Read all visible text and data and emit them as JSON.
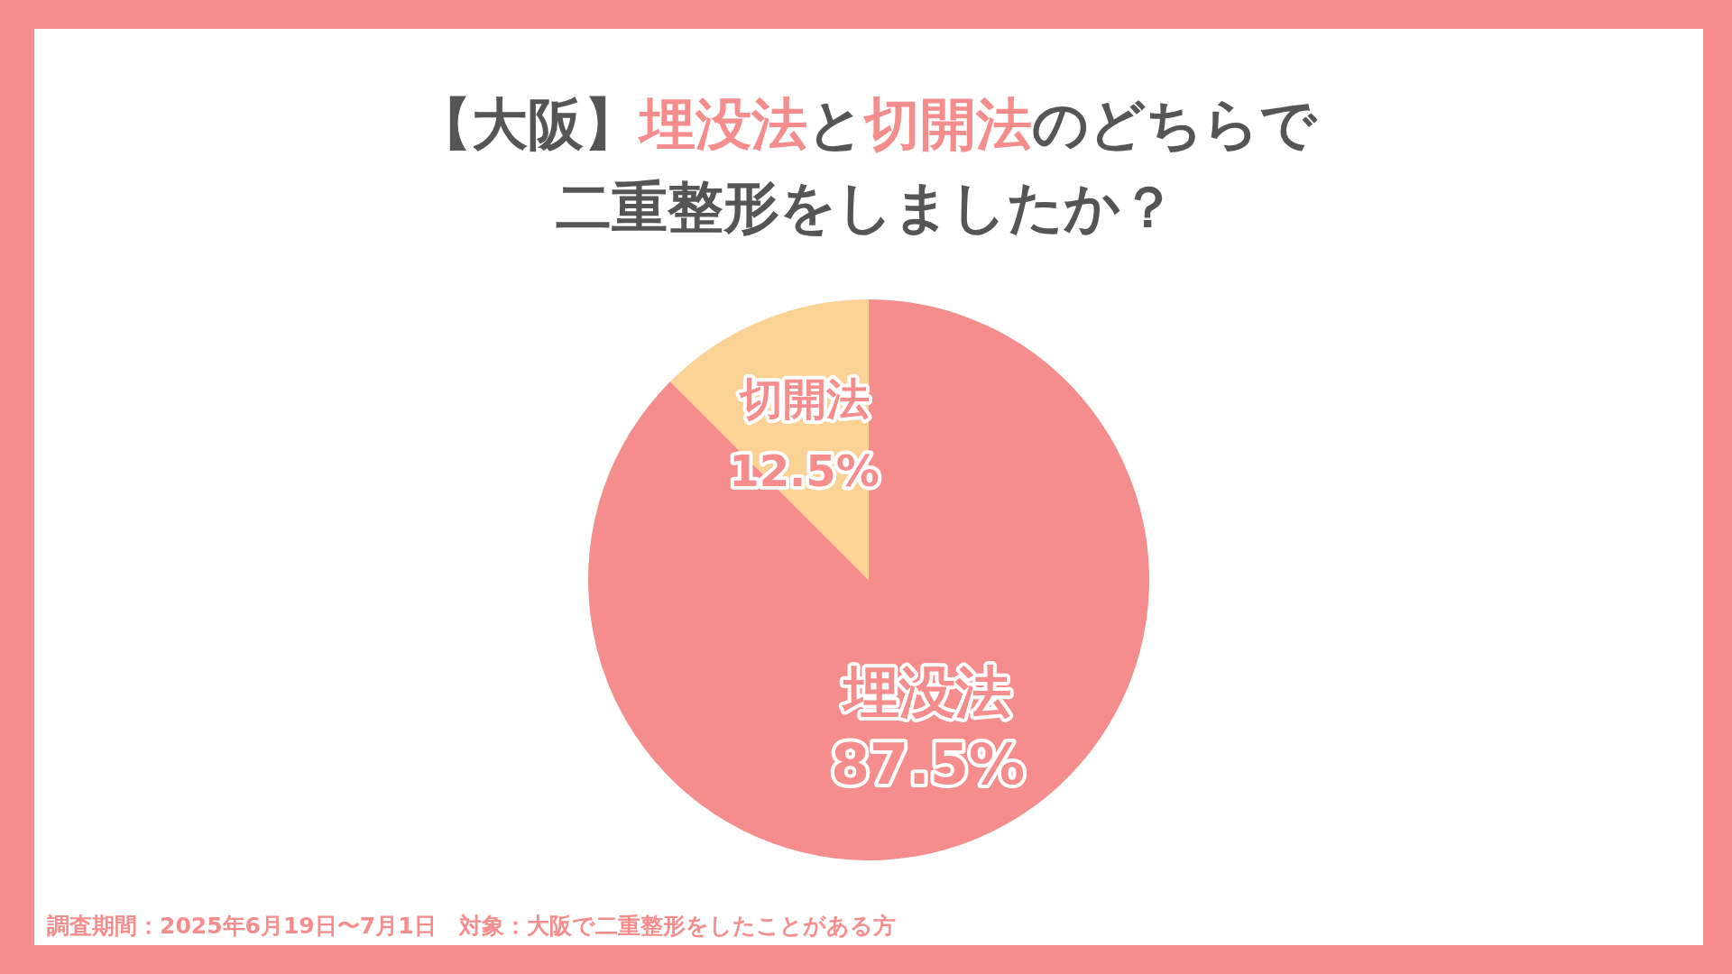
{
  "chart_data": {
    "type": "pie",
    "title": "【大阪】埋没法と切開法のどちらで二重整形をしましたか？",
    "categories": [
      "埋没法",
      "切開法"
    ],
    "values": [
      87.5,
      12.5
    ],
    "colors": [
      "#f48d8b",
      "#f9d294"
    ],
    "value_labels": [
      "87.5%",
      "12.5%"
    ],
    "annotations": [
      "調査期間：2025年6月19日〜7月1日　対象：大阪で二重整形をしたことがある方"
    ]
  }
}
